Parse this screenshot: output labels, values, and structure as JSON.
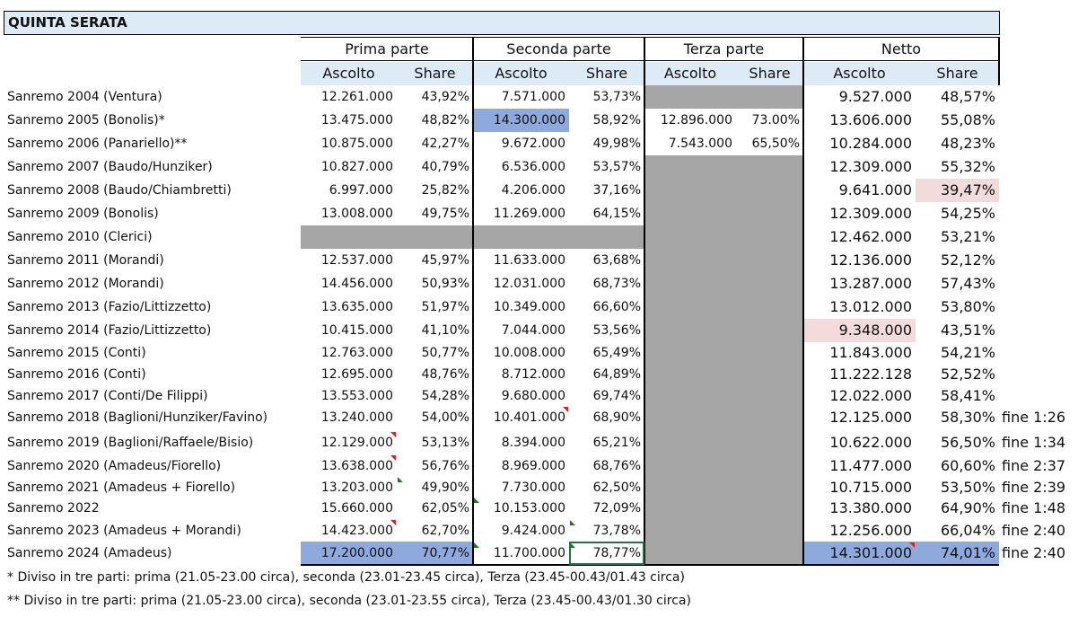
{
  "sheet": {
    "title": "QUINTA SERATA",
    "sections": [
      "Prima parte",
      "Seconda parte",
      "Terza parte",
      "Netto"
    ],
    "subheaders": [
      "Ascolto",
      "Share",
      "Ascolto",
      "Share",
      "Ascolto",
      "Share",
      "Ascolto",
      "Share"
    ],
    "rows": [
      {
        "label": "Sanremo 2004 (Ventura)",
        "p1_a": "12.261.000",
        "p1_s": "43,92%",
        "p2_a": "7.571.000",
        "p2_s": "53,73%",
        "p3_a": "",
        "p3_s": "",
        "n_a": "9.527.000",
        "n_s": "48,57%",
        "fine": ""
      },
      {
        "label": "Sanremo 2005 (Bonolis)*",
        "p1_a": "13.475.000",
        "p1_s": "48,82%",
        "p2_a": "14.300.000",
        "p2_s": "58,92%",
        "p3_a": "12.896.000",
        "p3_s": "73.00%",
        "n_a": "13.606.000",
        "n_s": "55,08%",
        "fine": ""
      },
      {
        "label": "Sanremo 2006 (Panariello)**",
        "p1_a": "10.875.000",
        "p1_s": "42,27%",
        "p2_a": "9.672.000",
        "p2_s": "49,98%",
        "p3_a": "7.543.000",
        "p3_s": "65,50%",
        "n_a": "10.284.000",
        "n_s": "48,23%",
        "fine": ""
      },
      {
        "label": "Sanremo 2007 (Baudo/Hunziker)",
        "p1_a": "10.827.000",
        "p1_s": "40,79%",
        "p2_a": "6.536.000",
        "p2_s": "53,57%",
        "p3_a": "",
        "p3_s": "",
        "n_a": "12.309.000",
        "n_s": "55,32%",
        "fine": ""
      },
      {
        "label": "Sanremo 2008 (Baudo/Chiambretti)",
        "p1_a": "6.997.000",
        "p1_s": "25,82%",
        "p2_a": "4.206.000",
        "p2_s": "37,16%",
        "p3_a": "",
        "p3_s": "",
        "n_a": "9.641.000",
        "n_s": "39,47%",
        "fine": ""
      },
      {
        "label": "Sanremo 2009 (Bonolis)",
        "p1_a": "13.008.000",
        "p1_s": "49,75%",
        "p2_a": "11.269.000",
        "p2_s": "64,15%",
        "p3_a": "",
        "p3_s": "",
        "n_a": "12.309.000",
        "n_s": "54,25%",
        "fine": ""
      },
      {
        "label": "Sanremo 2010 (Clerici)",
        "p1_a": "",
        "p1_s": "",
        "p2_a": "",
        "p2_s": "",
        "p3_a": "",
        "p3_s": "",
        "n_a": "12.462.000",
        "n_s": "53,21%",
        "fine": ""
      },
      {
        "label": "Sanremo 2011 (Morandi)",
        "p1_a": "12.537.000",
        "p1_s": "45,97%",
        "p2_a": "11.633.000",
        "p2_s": "63,68%",
        "p3_a": "",
        "p3_s": "",
        "n_a": "12.136.000",
        "n_s": "52,12%",
        "fine": ""
      },
      {
        "label": "Sanremo 2012 (Morandi)",
        "p1_a": "14.456.000",
        "p1_s": "50,93%",
        "p2_a": "12.031.000",
        "p2_s": "68,73%",
        "p3_a": "",
        "p3_s": "",
        "n_a": "13.287.000",
        "n_s": "57,43%",
        "fine": ""
      },
      {
        "label": "Sanremo 2013 (Fazio/Littizzetto)",
        "p1_a": "13.635.000",
        "p1_s": "51,97%",
        "p2_a": "10.349.000",
        "p2_s": "66,60%",
        "p3_a": "",
        "p3_s": "",
        "n_a": "13.012.000",
        "n_s": "53,80%",
        "fine": ""
      },
      {
        "label": "Sanremo 2014 (Fazio/Littizzetto)",
        "p1_a": "10.415.000",
        "p1_s": "41,10%",
        "p2_a": "7.044.000",
        "p2_s": "53,56%",
        "p3_a": "",
        "p3_s": "",
        "n_a": "9.348.000",
        "n_s": "43,51%",
        "fine": ""
      },
      {
        "label": "Sanremo 2015 (Conti)",
        "p1_a": "12.763.000",
        "p1_s": "50,77%",
        "p2_a": "10.008.000",
        "p2_s": "65,49%",
        "p3_a": "",
        "p3_s": "",
        "n_a": "11.843.000",
        "n_s": "54,21%",
        "fine": ""
      },
      {
        "label": "Sanremo 2016 (Conti)",
        "p1_a": "12.695.000",
        "p1_s": "48,76%",
        "p2_a": "8.712.000",
        "p2_s": "64,89%",
        "p3_a": "",
        "p3_s": "",
        "n_a": "11.222.128",
        "n_s": "52,52%",
        "fine": ""
      },
      {
        "label": "Sanremo 2017 (Conti/De Filippi)",
        "p1_a": "13.553.000",
        "p1_s": "54,28%",
        "p2_a": "9.680.000",
        "p2_s": "69,74%",
        "p3_a": "",
        "p3_s": "",
        "n_a": "12.022.000",
        "n_s": "58,41%",
        "fine": ""
      },
      {
        "label": "Sanremo 2018 (Baglioni/Hunziker/Favino)",
        "p1_a": "13.240.000",
        "p1_s": "54,00%",
        "p2_a": "10.401.000",
        "p2_s": "68,90%",
        "p3_a": "",
        "p3_s": "",
        "n_a": "12.125.000",
        "n_s": "58,30%",
        "fine": "fine 1:26"
      },
      {
        "label": "Sanremo 2019 (Baglioni/Raffaele/Bisio)",
        "p1_a": "12.129.000",
        "p1_s": "53,13%",
        "p2_a": "8.394.000",
        "p2_s": "65,21%",
        "p3_a": "",
        "p3_s": "",
        "n_a": "10.622.000",
        "n_s": "56,50%",
        "fine": "fine 1:34"
      },
      {
        "label": "Sanremo 2020 (Amadeus/Fiorello)",
        "p1_a": "13.638.000",
        "p1_s": "56,76%",
        "p2_a": "8.969.000",
        "p2_s": "68,76%",
        "p3_a": "",
        "p3_s": "",
        "n_a": "11.477.000",
        "n_s": "60,60%",
        "fine": "fine 2:37"
      },
      {
        "label": "Sanremo 2021 (Amadeus + Fiorello)",
        "p1_a": "13.203.000",
        "p1_s": "49,90%",
        "p2_a": "7.730.000",
        "p2_s": "62,50%",
        "p3_a": "",
        "p3_s": "",
        "n_a": "10.715.000",
        "n_s": "53,50%",
        "fine": "fine 2:39"
      },
      {
        "label": "Sanremo 2022",
        "p1_a": "15.660.000",
        "p1_s": "62,05%",
        "p2_a": "10.153.000",
        "p2_s": "72,09%",
        "p3_a": "",
        "p3_s": "",
        "n_a": "13.380.000",
        "n_s": "64,90%",
        "fine": "fine 1:48"
      },
      {
        "label": "Sanremo 2023 (Amadeus + Morandi)",
        "p1_a": "14.423.000",
        "p1_s": "62,70%",
        "p2_a": "9.424.000",
        "p2_s": "73,78%",
        "p3_a": "",
        "p3_s": "",
        "n_a": "12.256.000",
        "n_s": "66,04%",
        "fine": "fine 2:40"
      },
      {
        "label": "Sanremo 2024 (Amadeus)",
        "p1_a": "17.200.000",
        "p1_s": "70,77%",
        "p2_a": "11.700.000",
        "p2_s": "78,77%",
        "p3_a": "",
        "p3_s": "",
        "n_a": "14.301.000",
        "n_s": "74,01%",
        "fine": "fine 2:40"
      }
    ],
    "notes": [
      "* Diviso in tre parti: prima (21.05-23.00 circa), seconda (23.01-23.45 circa), Terza (23.45-00.43/01.43 circa)",
      "** Diviso in tre parti: prima (21.05-23.00 circa), seconda (23.01-23.55 circa), Terza (23.45-00.43/01.30 circa)"
    ]
  },
  "colors": {
    "header_fill": "#DDEBF7",
    "gray_fill": "#A6A6A6",
    "blue_highlight": "#8EA9DB",
    "pink_highlight": "#F2DCDB",
    "comment_marker": "#E02020",
    "error_marker": "#1F7A1F",
    "selection": "#217346"
  },
  "icons": [
    "comment-indicator-icon",
    "error-indicator-icon"
  ]
}
